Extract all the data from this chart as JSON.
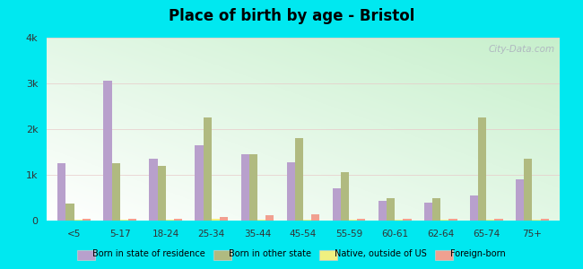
{
  "title": "Place of birth by age - Bristol",
  "categories": [
    "<5",
    "5-17",
    "18-24",
    "25-34",
    "35-44",
    "45-54",
    "55-59",
    "60-61",
    "62-64",
    "65-74",
    "75+"
  ],
  "series": {
    "Born in state of residence": [
      1250,
      3050,
      1350,
      1650,
      1450,
      1280,
      700,
      430,
      400,
      550,
      900
    ],
    "Born in other state": [
      380,
      1250,
      1200,
      2250,
      1450,
      1800,
      1050,
      500,
      500,
      2250,
      1350
    ],
    "Native, outside of US": [
      20,
      20,
      20,
      30,
      20,
      20,
      15,
      15,
      15,
      15,
      15
    ],
    "Foreign-born": [
      30,
      30,
      40,
      80,
      120,
      130,
      30,
      30,
      30,
      30,
      40
    ]
  },
  "colors": {
    "Born in state of residence": "#b8a0cc",
    "Born in other state": "#b0ba80",
    "Native, outside of US": "#f0f080",
    "Foreign-born": "#f0a090"
  },
  "ylim": [
    0,
    4000
  ],
  "yticks": [
    0,
    1000,
    2000,
    3000,
    4000
  ],
  "ytick_labels": [
    "0",
    "1k",
    "2k",
    "3k",
    "4k"
  ],
  "outer_bg": "#00e8f0",
  "watermark": "City-Data.com"
}
